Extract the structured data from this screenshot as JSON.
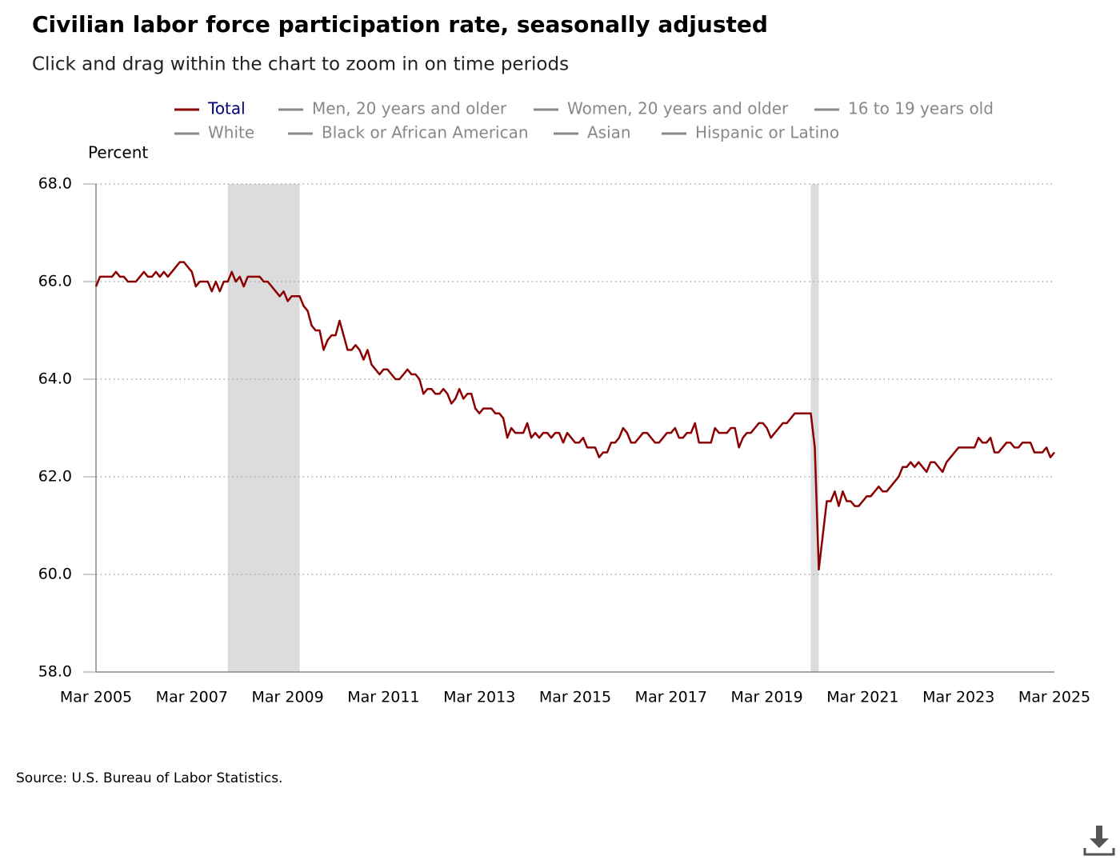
{
  "chart_data": {
    "type": "line",
    "title": "Civilian labor force participation rate, seasonally adjusted",
    "subtitle": "Click and drag within the chart to zoom in on time periods",
    "y_axis_label": "Percent",
    "source": "Source: U.S. Bureau of Labor Statistics.",
    "ylim": [
      58,
      68
    ],
    "yticks": [
      {
        "value": 58,
        "label": "58.0"
      },
      {
        "value": 60,
        "label": "60.0"
      },
      {
        "value": 62,
        "label": "62.0"
      },
      {
        "value": 64,
        "label": "64.0"
      },
      {
        "value": 66,
        "label": "66.0"
      },
      {
        "value": 68,
        "label": "68.0"
      }
    ],
    "grid": true,
    "shaded": [
      [
        33,
        51
      ],
      [
        179,
        181
      ]
    ],
    "categories": [
      "Mar 2005",
      null,
      null,
      null,
      null,
      null,
      null,
      null,
      null,
      null,
      null,
      null,
      null,
      null,
      null,
      null,
      null,
      null,
      null,
      null,
      null,
      null,
      null,
      null,
      "Mar 2007",
      null,
      null,
      null,
      null,
      null,
      null,
      null,
      null,
      null,
      null,
      null,
      null,
      null,
      null,
      null,
      null,
      null,
      null,
      null,
      null,
      null,
      null,
      null,
      "Mar 2009",
      null,
      null,
      null,
      null,
      null,
      null,
      null,
      null,
      null,
      null,
      null,
      null,
      null,
      null,
      null,
      null,
      null,
      null,
      null,
      null,
      null,
      null,
      null,
      "Mar 2011",
      null,
      null,
      null,
      null,
      null,
      null,
      null,
      null,
      null,
      null,
      null,
      null,
      null,
      null,
      null,
      null,
      null,
      null,
      null,
      null,
      null,
      null,
      null,
      "Mar 2013",
      null,
      null,
      null,
      null,
      null,
      null,
      null,
      null,
      null,
      null,
      null,
      null,
      null,
      null,
      null,
      null,
      null,
      null,
      null,
      null,
      null,
      null,
      null,
      "Mar 2015",
      null,
      null,
      null,
      null,
      null,
      null,
      null,
      null,
      null,
      null,
      null,
      null,
      null,
      null,
      null,
      null,
      null,
      null,
      null,
      null,
      null,
      null,
      null,
      "Mar 2017",
      null,
      null,
      null,
      null,
      null,
      null,
      null,
      null,
      null,
      null,
      null,
      null,
      null,
      null,
      null,
      null,
      null,
      null,
      null,
      null,
      null,
      null,
      null,
      "Mar 2019",
      null,
      null,
      null,
      null,
      null,
      null,
      null,
      null,
      null,
      null,
      null,
      null,
      null,
      null,
      null,
      null,
      null,
      null,
      null,
      null,
      null,
      null,
      null,
      "Mar 2021",
      null,
      null,
      null,
      null,
      null,
      null,
      null,
      null,
      null,
      null,
      null,
      null,
      null,
      null,
      null,
      null,
      null,
      null,
      null,
      null,
      null,
      null,
      null,
      "Mar 2023",
      null,
      null,
      null,
      null,
      null,
      null,
      null,
      null,
      null,
      null,
      null,
      null,
      null,
      null,
      null,
      null,
      null,
      null,
      null,
      null,
      null,
      null,
      null,
      "Mar 2025"
    ],
    "series": [
      {
        "name": "Total",
        "color": "#8b0000",
        "visible": true,
        "values": [
          65.9,
          66.1,
          66.1,
          66.1,
          66.1,
          66.2,
          66.1,
          66.1,
          66.0,
          66.0,
          66.0,
          66.1,
          66.2,
          66.1,
          66.1,
          66.2,
          66.1,
          66.2,
          66.1,
          66.2,
          66.3,
          66.4,
          66.4,
          66.3,
          66.2,
          65.9,
          66.0,
          66.0,
          66.0,
          65.8,
          66.0,
          65.8,
          66.0,
          66.0,
          66.2,
          66.0,
          66.1,
          65.9,
          66.1,
          66.1,
          66.1,
          66.1,
          66.0,
          66.0,
          65.9,
          65.8,
          65.7,
          65.8,
          65.6,
          65.7,
          65.7,
          65.7,
          65.5,
          65.4,
          65.1,
          65.0,
          65.0,
          64.6,
          64.8,
          64.9,
          64.9,
          65.2,
          64.9,
          64.6,
          64.6,
          64.7,
          64.6,
          64.4,
          64.6,
          64.3,
          64.2,
          64.1,
          64.2,
          64.2,
          64.1,
          64.0,
          64.0,
          64.1,
          64.2,
          64.1,
          64.1,
          64.0,
          63.7,
          63.8,
          63.8,
          63.7,
          63.7,
          63.8,
          63.7,
          63.5,
          63.6,
          63.8,
          63.6,
          63.7,
          63.7,
          63.4,
          63.3,
          63.4,
          63.4,
          63.4,
          63.3,
          63.3,
          63.2,
          62.8,
          63.0,
          62.9,
          62.9,
          62.9,
          63.1,
          62.8,
          62.9,
          62.8,
          62.9,
          62.9,
          62.8,
          62.9,
          62.9,
          62.7,
          62.9,
          62.8,
          62.7,
          62.7,
          62.8,
          62.6,
          62.6,
          62.6,
          62.4,
          62.5,
          62.5,
          62.7,
          62.7,
          62.8,
          63.0,
          62.9,
          62.7,
          62.7,
          62.8,
          62.9,
          62.9,
          62.8,
          62.7,
          62.7,
          62.8,
          62.9,
          62.9,
          63.0,
          62.8,
          62.8,
          62.9,
          62.9,
          63.1,
          62.7,
          62.7,
          62.7,
          62.7,
          63.0,
          62.9,
          62.9,
          62.9,
          63.0,
          63.0,
          62.6,
          62.8,
          62.9,
          62.9,
          63.0,
          63.1,
          63.1,
          63.0,
          62.8,
          62.9,
          63.0,
          63.1,
          63.1,
          63.2,
          63.3,
          63.3,
          63.3,
          63.3,
          63.3,
          62.6,
          60.1,
          60.8,
          61.5,
          61.5,
          61.7,
          61.4,
          61.7,
          61.5,
          61.5,
          61.4,
          61.4,
          61.5,
          61.6,
          61.6,
          61.7,
          61.8,
          61.7,
          61.7,
          61.8,
          61.9,
          62.0,
          62.2,
          62.2,
          62.3,
          62.2,
          62.3,
          62.2,
          62.1,
          62.3,
          62.3,
          62.2,
          62.1,
          62.3,
          62.4,
          62.5,
          62.6,
          62.6,
          62.6,
          62.6,
          62.6,
          62.8,
          62.7,
          62.7,
          62.8,
          62.5,
          62.5,
          62.6,
          62.7,
          62.7,
          62.6,
          62.6,
          62.7,
          62.7,
          62.7,
          62.5,
          62.5,
          62.5,
          62.6,
          62.4,
          62.5
        ]
      },
      {
        "name": "Men, 20 years and older",
        "color": "#888888",
        "visible": false
      },
      {
        "name": "Women, 20 years and older",
        "color": "#888888",
        "visible": false
      },
      {
        "name": "16 to 19 years old",
        "color": "#888888",
        "visible": false
      },
      {
        "name": "White",
        "color": "#888888",
        "visible": false
      },
      {
        "name": "Black or African American",
        "color": "#888888",
        "visible": false
      },
      {
        "name": "Asian",
        "color": "#888888",
        "visible": false
      },
      {
        "name": "Hispanic or Latino",
        "color": "#888888",
        "visible": false
      }
    ]
  }
}
